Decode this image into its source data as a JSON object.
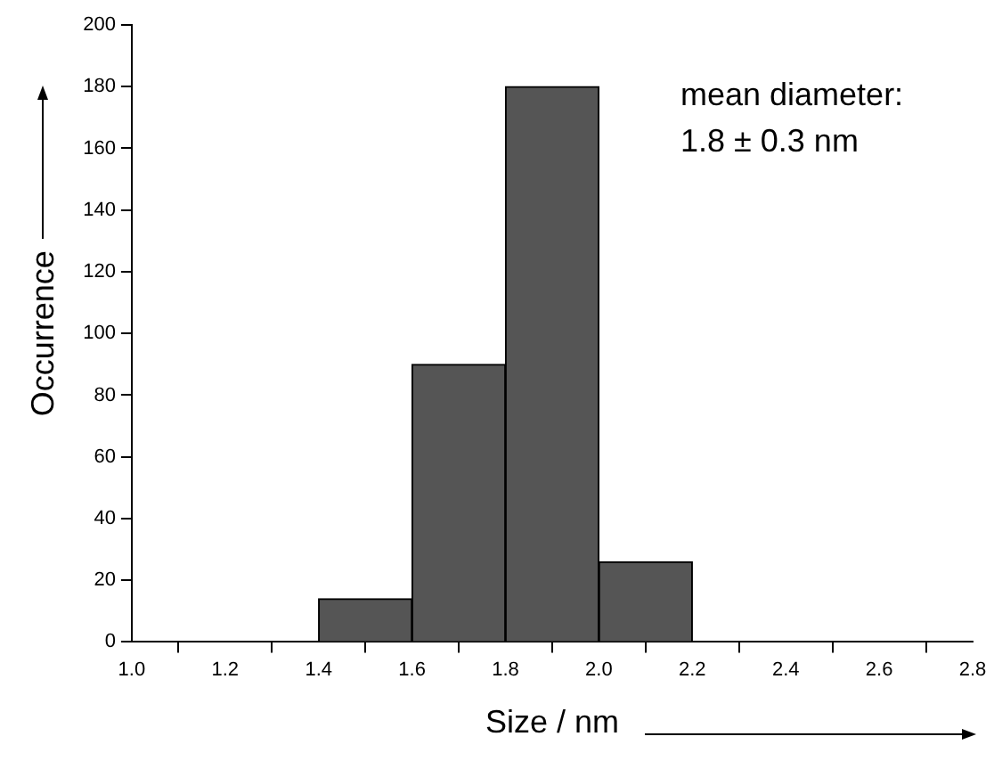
{
  "chart_data": {
    "type": "histogram",
    "xlabel": "Size / nm",
    "ylabel": "Occurrence",
    "bins": [
      1.4,
      1.6,
      1.8,
      2.0,
      2.2
    ],
    "values": [
      14,
      90,
      180,
      26
    ],
    "color": "#555555",
    "xlim": [
      1.0,
      2.8
    ],
    "xticks": [
      {
        "value": 1.0,
        "label": "1.0"
      },
      {
        "value": 1.2,
        "label": "1.2"
      },
      {
        "value": 1.4,
        "label": "1.4"
      },
      {
        "value": 1.6,
        "label": "1.6"
      },
      {
        "value": 1.8,
        "label": "1.8"
      },
      {
        "value": 2.0,
        "label": "2.0"
      },
      {
        "value": 2.2,
        "label": "2.2"
      },
      {
        "value": 2.4,
        "label": "2.4"
      },
      {
        "value": 2.6,
        "label": "2.6"
      },
      {
        "value": 2.8,
        "label": "2.8"
      }
    ],
    "ylim": [
      0,
      200
    ],
    "yticks": [
      0,
      20,
      40,
      60,
      80,
      100,
      120,
      140,
      160,
      180,
      200
    ],
    "annotations": [
      "mean diameter:",
      "1.8 ± 0.3 nm"
    ],
    "grid": false,
    "legend": false
  }
}
